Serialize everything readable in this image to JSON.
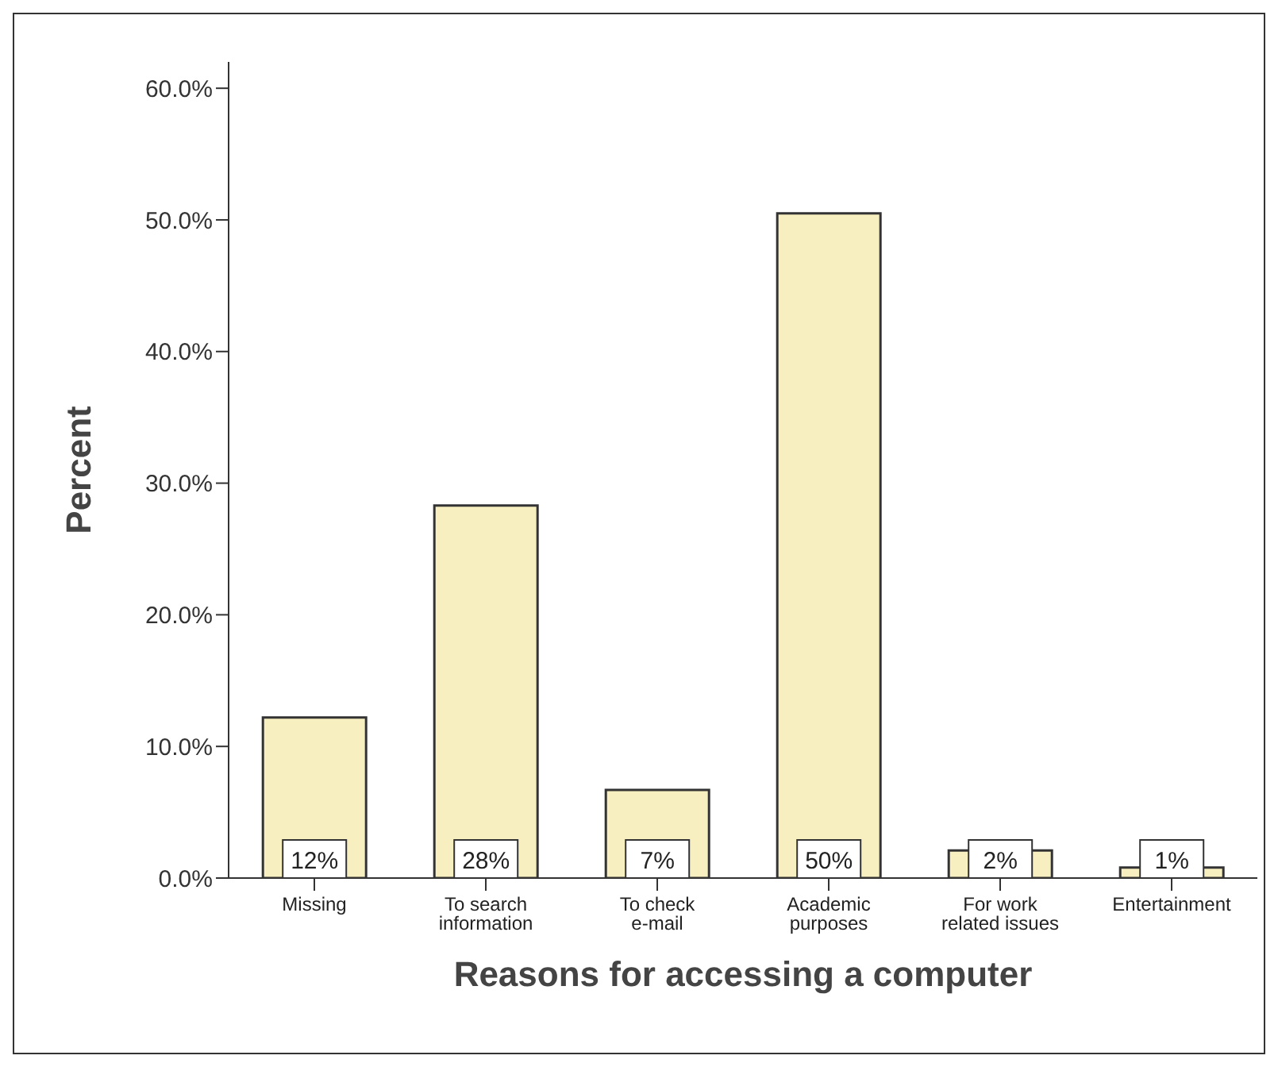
{
  "chart_data": {
    "type": "bar",
    "xlabel": "Reasons for accessing a computer",
    "ylabel": "Percent",
    "categories": [
      "Missing",
      "To search information",
      "To check e-mail",
      "Academic purposes",
      "For work related issues",
      "Entertainment"
    ],
    "values": [
      12.2,
      28.3,
      6.7,
      50.5,
      2.1,
      0.8
    ],
    "value_labels": [
      "12%",
      "28%",
      "7%",
      "50%",
      "2%",
      "1%"
    ],
    "color": "#f7efbf",
    "ylim": [
      0,
      62
    ],
    "yticks": [
      {
        "value": 0,
        "label": "0.0%"
      },
      {
        "value": 10,
        "label": "10.0%"
      },
      {
        "value": 20,
        "label": "20.0%"
      },
      {
        "value": 30,
        "label": "30.0%"
      },
      {
        "value": 40,
        "label": "40.0%"
      },
      {
        "value": 50,
        "label": "50.0%"
      },
      {
        "value": 60,
        "label": "60.0%"
      }
    ],
    "grid": false,
    "legend": false
  }
}
